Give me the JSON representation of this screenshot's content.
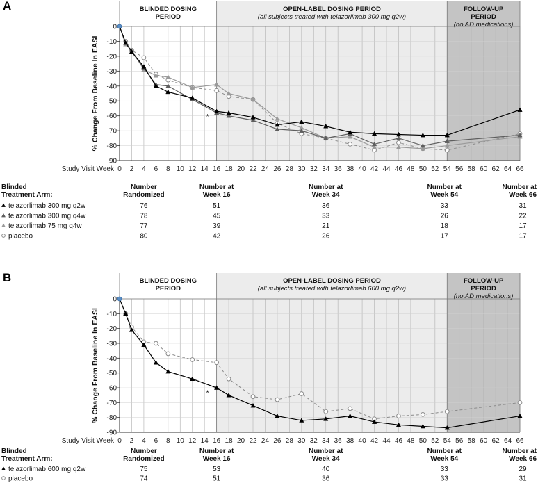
{
  "chart_data": [
    {
      "type": "line",
      "panel_label": "A",
      "ylabel": "% Change From Baseline In EASI",
      "xlabel": "Study Visit Week",
      "ylim": [
        -90,
        0
      ],
      "yticks": [
        0,
        -10,
        -20,
        -30,
        -40,
        -50,
        -60,
        -70,
        -80,
        -90
      ],
      "xlim": [
        0,
        66
      ],
      "xticks": [
        0,
        2,
        4,
        6,
        8,
        10,
        12,
        14,
        16,
        18,
        20,
        22,
        24,
        26,
        28,
        30,
        32,
        34,
        36,
        38,
        40,
        42,
        44,
        46,
        48,
        50,
        52,
        54,
        56,
        58,
        60,
        62,
        64,
        66
      ],
      "periods": [
        {
          "title": "BLINDED DOSING",
          "title2": "PERIOD",
          "subtitle": "",
          "x_start": 0,
          "x_end": 16,
          "shade": "#ffffff"
        },
        {
          "title": "OPEN-LABEL DOSING PERIOD",
          "title2": "",
          "subtitle": "(all subjects treated with telazorlimab 300 mg q2w)",
          "x_start": 16,
          "x_end": 54,
          "shade": "#ececec"
        },
        {
          "title": "FOLLOW-UP",
          "title2": "PERIOD",
          "subtitle": "(no AD medications)",
          "x_start": 54,
          "x_end": 66,
          "shade": "#c4c4c4"
        }
      ],
      "annotation": {
        "text": "*",
        "x": 14.5,
        "y": -62
      },
      "series": [
        {
          "name": "telazorlimab 300 mg q2w",
          "marker": "triangle",
          "color": "#000000",
          "dash": "solid",
          "x": [
            0,
            1,
            2,
            4,
            6,
            8,
            12,
            16,
            18,
            22,
            26,
            30,
            34,
            38,
            42,
            46,
            50,
            54,
            66
          ],
          "y": [
            0,
            -11,
            -17,
            -27,
            -40,
            -44,
            -48,
            -57,
            -58,
            -61,
            -66,
            -64,
            -67,
            -71,
            -72,
            -72.5,
            -73,
            -73,
            -56
          ]
        },
        {
          "name": "telazorlimab 300 mg q4w",
          "marker": "triangle",
          "color": "#5e5e5e",
          "dash": "solid",
          "x": [
            0,
            1,
            2,
            4,
            6,
            8,
            12,
            16,
            18,
            22,
            26,
            30,
            34,
            38,
            42,
            46,
            50,
            54,
            66
          ],
          "y": [
            0,
            -11,
            -17,
            -28,
            -39,
            -40,
            -49,
            -58,
            -60,
            -63,
            -69,
            -70,
            -75,
            -72,
            -79,
            -75,
            -80,
            -77,
            -73
          ]
        },
        {
          "name": "telazorlimab 75 mg q4w",
          "marker": "triangle",
          "color": "#9a9a9a",
          "dash": "solid",
          "x": [
            0,
            1,
            2,
            4,
            6,
            8,
            12,
            16,
            18,
            22,
            26,
            30,
            34,
            38,
            42,
            46,
            50,
            54,
            66
          ],
          "y": [
            0,
            -12,
            -16,
            -29,
            -33,
            -34,
            -41,
            -39,
            -45,
            -49,
            -62,
            -68,
            -75,
            -74,
            -81,
            -81,
            -82,
            -80,
            -74
          ]
        },
        {
          "name": "placebo",
          "marker": "circle",
          "color": "#8a8a8a",
          "dash": "dashed",
          "x": [
            0,
            1,
            2,
            4,
            6,
            8,
            12,
            16,
            18,
            22,
            26,
            30,
            34,
            38,
            42,
            46,
            50,
            54,
            66
          ],
          "y": [
            0,
            -10,
            -16,
            -21,
            -32,
            -36,
            -41,
            -43,
            -47,
            -49,
            -65,
            -72,
            -75,
            -79,
            -83,
            -78,
            -82,
            -83,
            -72
          ]
        }
      ],
      "table": {
        "header_col1": [
          "Blinded",
          "Treatment Arm:"
        ],
        "headers": [
          {
            "l1": "Number",
            "l2": "Randomized",
            "x": 4
          },
          {
            "l1": "Number at",
            "l2": "Week 16",
            "x": 16
          },
          {
            "l1": "Number at",
            "l2": "Week 34",
            "x": 34
          },
          {
            "l1": "Number at",
            "l2": "Week 54",
            "x": 54
          },
          {
            "l1": "Number at",
            "l2": "Week 66",
            "x": 66
          }
        ],
        "rows": [
          {
            "label": "telazorlimab 300 mg q2w",
            "marker": "triangle",
            "color": "#000000",
            "values": [
              "76",
              "51",
              "36",
              "33",
              "31"
            ]
          },
          {
            "label": "telazorlimab 300 mg q4w",
            "marker": "triangle",
            "color": "#5e5e5e",
            "values": [
              "78",
              "45",
              "33",
              "26",
              "22"
            ]
          },
          {
            "label": "telazorlimab 75 mg q4w",
            "marker": "triangle",
            "color": "#9a9a9a",
            "values": [
              "77",
              "39",
              "21",
              "18",
              "17"
            ]
          },
          {
            "label": "placebo",
            "marker": "circle",
            "color": "#8a8a8a",
            "values": [
              "80",
              "42",
              "26",
              "17",
              "17"
            ]
          }
        ]
      }
    },
    {
      "type": "line",
      "panel_label": "B",
      "ylabel": "% Change From Baseline In EASI",
      "xlabel": "Study Visit Week",
      "ylim": [
        -90,
        0
      ],
      "yticks": [
        0,
        -10,
        -20,
        -30,
        -40,
        -50,
        -60,
        -70,
        -80,
        -90
      ],
      "xlim": [
        0,
        66
      ],
      "xticks": [
        0,
        2,
        4,
        6,
        8,
        10,
        12,
        14,
        16,
        18,
        20,
        22,
        24,
        26,
        28,
        30,
        32,
        34,
        36,
        38,
        40,
        42,
        44,
        46,
        48,
        50,
        52,
        54,
        56,
        58,
        60,
        62,
        64,
        66
      ],
      "periods": [
        {
          "title": "BLINDED DOSING",
          "title2": "PERIOD",
          "subtitle": "",
          "x_start": 0,
          "x_end": 16,
          "shade": "#ffffff"
        },
        {
          "title": "OPEN-LABEL DOSING PERIOD",
          "title2": "",
          "subtitle": "(all subjects treated with telazorlimab 600 mg q2w)",
          "x_start": 16,
          "x_end": 54,
          "shade": "#ececec"
        },
        {
          "title": "FOLLOW-UP",
          "title2": "PERIOD",
          "subtitle": "(no AD medications)",
          "x_start": 54,
          "x_end": 66,
          "shade": "#c4c4c4"
        }
      ],
      "annotation": {
        "text": "*",
        "x": 14.5,
        "y": -65
      },
      "series": [
        {
          "name": "telazorlimab 600 mg q2w",
          "marker": "triangle",
          "color": "#000000",
          "dash": "solid",
          "x": [
            0,
            1,
            2,
            4,
            6,
            8,
            12,
            16,
            18,
            22,
            26,
            30,
            34,
            38,
            42,
            46,
            50,
            54,
            66
          ],
          "y": [
            0,
            -10,
            -21,
            -31,
            -43,
            -49,
            -54,
            -60,
            -65,
            -72,
            -79,
            -82,
            -81,
            -79,
            -83,
            -85,
            -86,
            -87,
            -79
          ]
        },
        {
          "name": "placebo",
          "marker": "circle",
          "color": "#8a8a8a",
          "dash": "dashed",
          "x": [
            0,
            1,
            2,
            4,
            6,
            8,
            12,
            16,
            18,
            22,
            26,
            30,
            34,
            38,
            42,
            46,
            50,
            54,
            66
          ],
          "y": [
            0,
            -10,
            -19,
            -29,
            -30,
            -37,
            -41,
            -43,
            -54,
            -66,
            -68,
            -64,
            -76,
            -74,
            -81,
            -79,
            -78,
            -76,
            -70
          ]
        }
      ],
      "table": {
        "header_col1": [
          "Blinded",
          "Treatment Arm:"
        ],
        "headers": [
          {
            "l1": "Number",
            "l2": "Randomized",
            "x": 4
          },
          {
            "l1": "Number at",
            "l2": "Week 16",
            "x": 16
          },
          {
            "l1": "Number at",
            "l2": "Week 34",
            "x": 34
          },
          {
            "l1": "Number at",
            "l2": "Week 54",
            "x": 54
          },
          {
            "l1": "Number at",
            "l2": "Week 66",
            "x": 66
          }
        ],
        "rows": [
          {
            "label": "telazorlimab 600 mg q2w",
            "marker": "triangle",
            "color": "#000000",
            "values": [
              "75",
              "53",
              "40",
              "33",
              "29"
            ]
          },
          {
            "label": "placebo",
            "marker": "circle",
            "color": "#8a8a8a",
            "values": [
              "74",
              "51",
              "36",
              "33",
              "31"
            ]
          }
        ]
      }
    }
  ]
}
